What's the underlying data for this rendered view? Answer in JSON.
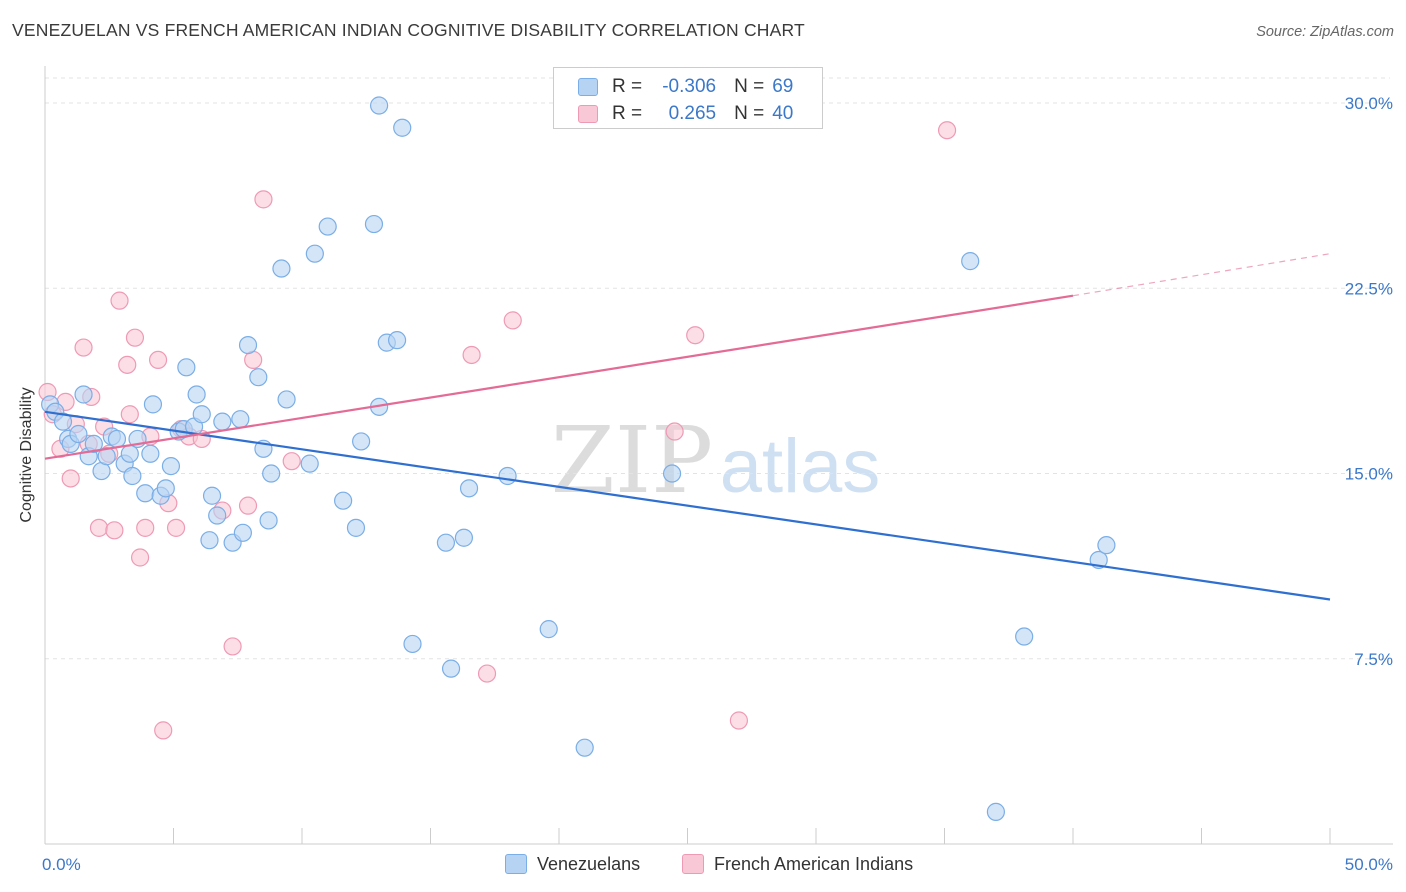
{
  "title": "VENEZUELAN VS FRENCH AMERICAN INDIAN COGNITIVE DISABILITY CORRELATION CHART",
  "source": "Source: ZipAtlas.com",
  "watermark": {
    "zip": "ZIP",
    "atlas": "atlas"
  },
  "legend": {
    "r_label": "R =",
    "n_label": "N =",
    "rows": [
      {
        "r": "-0.306",
        "n": "69"
      },
      {
        "r": "0.265",
        "n": "40"
      }
    ]
  },
  "colors": {
    "blue_fill": "#b7d3f3",
    "blue_stroke": "#7aaee6",
    "blue_line": "#2f6fd0",
    "pink_fill": "#f9c8d6",
    "pink_stroke": "#ef9ab5",
    "pink_line": "#e36b95",
    "tick_text": "#3b78c9",
    "grid": "#e3e3e3"
  },
  "chart_data": {
    "type": "scatter",
    "title": "VENEZUELAN VS FRENCH AMERICAN INDIAN COGNITIVE DISABILITY CORRELATION CHART",
    "xlabel": "",
    "ylabel": "Cognitive Disability",
    "xlim": [
      0,
      50
    ],
    "ylim": [
      0,
      31.5
    ],
    "x_tick_labels": [
      "0.0%",
      "50.0%"
    ],
    "y_ticks": [
      7.5,
      15.0,
      22.5,
      30.0
    ],
    "y_tick_labels": [
      "7.5%",
      "15.0%",
      "22.5%",
      "30.0%"
    ],
    "grid": "horizontal dashed",
    "legend_position": "top-center",
    "series": [
      {
        "name": "Venezuelans",
        "color": "#7aaee6",
        "points": [
          [
            0.2,
            17.8
          ],
          [
            0.4,
            17.5
          ],
          [
            0.7,
            17.1
          ],
          [
            0.9,
            16.4
          ],
          [
            1.0,
            16.2
          ],
          [
            1.3,
            16.6
          ],
          [
            1.5,
            18.2
          ],
          [
            1.7,
            15.7
          ],
          [
            1.9,
            16.2
          ],
          [
            2.2,
            15.1
          ],
          [
            2.4,
            15.7
          ],
          [
            2.6,
            16.5
          ],
          [
            2.8,
            16.4
          ],
          [
            3.1,
            15.4
          ],
          [
            3.3,
            15.8
          ],
          [
            3.4,
            14.9
          ],
          [
            3.6,
            16.4
          ],
          [
            3.9,
            14.2
          ],
          [
            4.1,
            15.8
          ],
          [
            4.2,
            17.8
          ],
          [
            4.5,
            14.1
          ],
          [
            4.7,
            14.4
          ],
          [
            4.9,
            15.3
          ],
          [
            5.2,
            16.7
          ],
          [
            5.4,
            16.8
          ],
          [
            5.5,
            19.3
          ],
          [
            5.8,
            16.9
          ],
          [
            5.9,
            18.2
          ],
          [
            6.1,
            17.4
          ],
          [
            6.4,
            12.3
          ],
          [
            6.5,
            14.1
          ],
          [
            6.7,
            13.3
          ],
          [
            6.9,
            17.1
          ],
          [
            7.3,
            12.2
          ],
          [
            7.6,
            17.2
          ],
          [
            7.7,
            12.6
          ],
          [
            7.9,
            20.2
          ],
          [
            8.3,
            18.9
          ],
          [
            8.5,
            16.0
          ],
          [
            8.7,
            13.1
          ],
          [
            8.8,
            15.0
          ],
          [
            9.2,
            23.3
          ],
          [
            9.4,
            18.0
          ],
          [
            10.3,
            15.4
          ],
          [
            10.5,
            23.9
          ],
          [
            11.0,
            25.0
          ],
          [
            11.6,
            13.9
          ],
          [
            12.1,
            12.8
          ],
          [
            12.3,
            16.3
          ],
          [
            12.8,
            25.1
          ],
          [
            13.0,
            17.7
          ],
          [
            13.0,
            29.9
          ],
          [
            13.3,
            20.3
          ],
          [
            13.7,
            20.4
          ],
          [
            13.9,
            29.0
          ],
          [
            14.3,
            8.1
          ],
          [
            15.6,
            12.2
          ],
          [
            15.8,
            7.1
          ],
          [
            16.3,
            12.4
          ],
          [
            16.5,
            14.4
          ],
          [
            18.0,
            14.9
          ],
          [
            19.6,
            8.7
          ],
          [
            21.0,
            3.9
          ],
          [
            24.4,
            15.0
          ],
          [
            36.0,
            23.6
          ],
          [
            37.0,
            1.3
          ],
          [
            38.1,
            8.4
          ],
          [
            41.0,
            11.5
          ],
          [
            41.3,
            12.1
          ]
        ]
      },
      {
        "name": "French American Indians",
        "color": "#ef9ab5",
        "points": [
          [
            0.1,
            18.3
          ],
          [
            0.3,
            17.4
          ],
          [
            0.6,
            16.0
          ],
          [
            0.8,
            17.9
          ],
          [
            1.0,
            14.8
          ],
          [
            1.2,
            17.0
          ],
          [
            1.5,
            20.1
          ],
          [
            1.7,
            16.2
          ],
          [
            1.8,
            18.1
          ],
          [
            2.1,
            12.8
          ],
          [
            2.3,
            16.9
          ],
          [
            2.5,
            15.8
          ],
          [
            2.7,
            12.7
          ],
          [
            2.9,
            22.0
          ],
          [
            3.2,
            19.4
          ],
          [
            3.3,
            17.4
          ],
          [
            3.5,
            20.5
          ],
          [
            3.7,
            11.6
          ],
          [
            3.9,
            12.8
          ],
          [
            4.1,
            16.5
          ],
          [
            4.4,
            19.6
          ],
          [
            4.6,
            4.6
          ],
          [
            4.8,
            13.8
          ],
          [
            5.1,
            12.8
          ],
          [
            5.3,
            16.8
          ],
          [
            5.6,
            16.5
          ],
          [
            6.1,
            16.4
          ],
          [
            6.9,
            13.5
          ],
          [
            7.3,
            8.0
          ],
          [
            7.9,
            13.7
          ],
          [
            8.1,
            19.6
          ],
          [
            8.5,
            26.1
          ],
          [
            9.6,
            15.5
          ],
          [
            16.6,
            19.8
          ],
          [
            17.2,
            6.9
          ],
          [
            18.2,
            21.2
          ],
          [
            24.5,
            16.7
          ],
          [
            35.1,
            28.9
          ],
          [
            25.3,
            20.6
          ],
          [
            27.0,
            5.0
          ]
        ]
      }
    ],
    "trend_lines": [
      {
        "series": "Venezuelans",
        "x": [
          0,
          50
        ],
        "y": [
          17.5,
          9.9
        ]
      },
      {
        "series": "French American Indians",
        "x": [
          0,
          40
        ],
        "y": [
          15.6,
          22.2
        ],
        "dashed_extension": {
          "x": [
            40,
            50
          ],
          "y": [
            22.2,
            23.9
          ]
        }
      }
    ]
  }
}
